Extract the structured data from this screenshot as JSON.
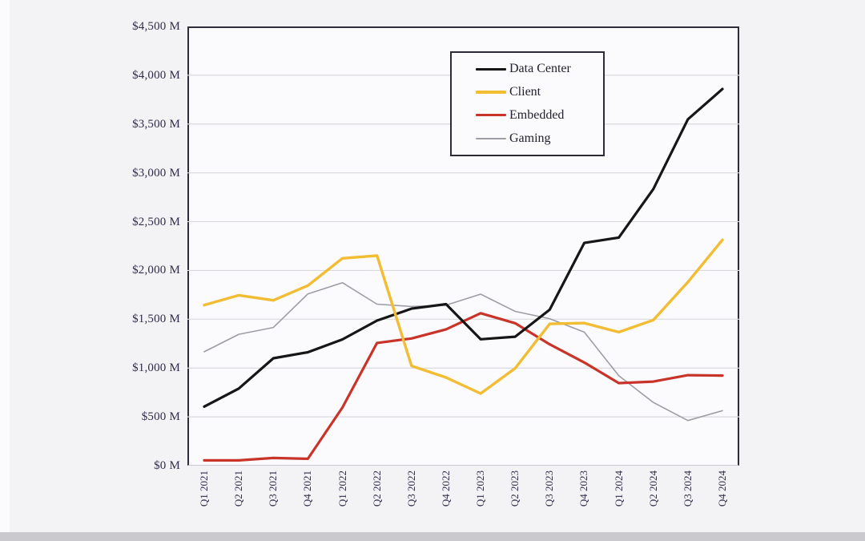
{
  "page": {
    "background_color": "#f3f2f5",
    "plot_background_color": "#fbfbfd",
    "axis_border_color": "#2d2d3b",
    "gridline_color": "#d9d9de",
    "tick_label_color": "#322c4b"
  },
  "legend": {
    "position": "inside-top-center",
    "border_color": "#2c2c38"
  },
  "chart_data": {
    "type": "line",
    "title": "",
    "xlabel": "",
    "ylabel": "",
    "ylim": [
      0,
      4500
    ],
    "y_tick_step": 500,
    "grid": true,
    "legend_position": "inside-top-center",
    "x_tick_rotation": -90,
    "y_ticks": [
      {
        "value": 4500,
        "label": "$4,500 M"
      },
      {
        "value": 4000,
        "label": "$4,000 M"
      },
      {
        "value": 3500,
        "label": "$3,500 M"
      },
      {
        "value": 3000,
        "label": "$3,000 M"
      },
      {
        "value": 2500,
        "label": "$2,500 M"
      },
      {
        "value": 2000,
        "label": "$2,000 M"
      },
      {
        "value": 1500,
        "label": "$1,500 M"
      },
      {
        "value": 1000,
        "label": "$1,000 M"
      },
      {
        "value": 500,
        "label": "$500 M"
      },
      {
        "value": 0,
        "label": "$0 M"
      }
    ],
    "categories": [
      "Q1 2021",
      "Q2 2021",
      "Q3 2021",
      "Q4 2021",
      "Q1 2022",
      "Q2 2022",
      "Q3 2022",
      "Q4 2022",
      "Q1 2023",
      "Q2 2023",
      "Q3 2023",
      "Q4 2023",
      "Q1 2024",
      "Q2 2024",
      "Q3 2024",
      "Q4 2024"
    ],
    "series": [
      {
        "name": "Data Center",
        "color": "#161616",
        "line_width": 3.2,
        "values": [
          605,
          790,
          1100,
          1162,
          1293,
          1486,
          1609,
          1655,
          1295,
          1321,
          1598,
          2282,
          2337,
          2834,
          3549,
          3859
        ]
      },
      {
        "name": "Client",
        "color": "#f2bc33",
        "line_width": 3.4,
        "values": [
          1646,
          1746,
          1694,
          1845,
          2124,
          2152,
          1022,
          903,
          739,
          998,
          1453,
          1461,
          1368,
          1492,
          1881,
          2313
        ]
      },
      {
        "name": "Embedded",
        "color": "#c8342a",
        "line_width": 3.2,
        "values": [
          54,
          54,
          79,
          71,
          595,
          1257,
          1303,
          1397,
          1562,
          1459,
          1243,
          1057,
          846,
          861,
          927,
          923
        ]
      },
      {
        "name": "Gaming",
        "color": "#9d9da5",
        "line_width": 1.6,
        "values": [
          1167,
          1346,
          1416,
          1760,
          1875,
          1655,
          1631,
          1644,
          1757,
          1581,
          1506,
          1368,
          922,
          648,
          462,
          563
        ]
      }
    ]
  }
}
